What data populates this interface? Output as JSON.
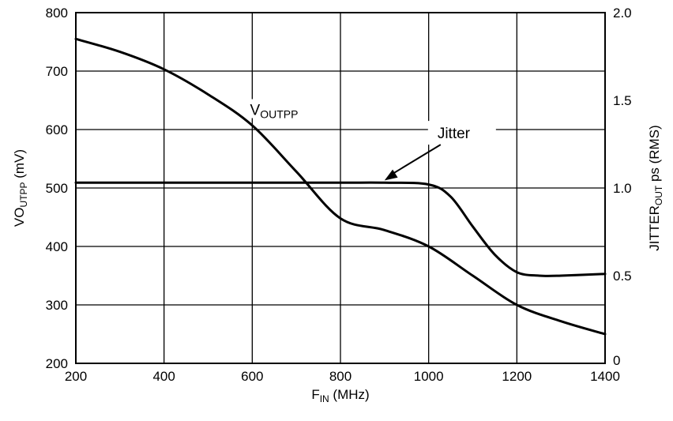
{
  "chart_data": {
    "type": "line",
    "x_axis": {
      "label_main": "F",
      "label_sub": "IN",
      "label_rest": " (MHz)",
      "range": [
        200,
        1400
      ],
      "ticks": [
        200,
        400,
        600,
        800,
        1000,
        1200,
        1400
      ],
      "tick_labels": [
        "200",
        "400",
        "600",
        "800",
        "1000",
        "1200",
        "1400"
      ]
    },
    "y_axis_left": {
      "label_main": "VO",
      "label_sub": "UTPP",
      "label_rest": " (mV)",
      "range": [
        200,
        800
      ],
      "ticks": [
        200,
        300,
        400,
        500,
        600,
        700,
        800
      ],
      "tick_labels": [
        "200",
        "300",
        "400",
        "500",
        "600",
        "700",
        "800"
      ]
    },
    "y_axis_right": {
      "label_main": "JITTER",
      "label_sub": "OUT",
      "label_rest": " ps (RMS)",
      "range": [
        0,
        2.0
      ],
      "ticks": [
        0,
        0.5,
        1.0,
        1.5,
        2.0
      ],
      "tick_labels": [
        "0",
        "0.5",
        "1.0",
        "1.5",
        "2.0"
      ]
    },
    "grid": true,
    "series": [
      {
        "key": "voutpp",
        "axis": "left",
        "x": [
          200,
          300,
          400,
          500,
          600,
          700,
          800,
          900,
          1000,
          1100,
          1200,
          1300,
          1400
        ],
        "y": [
          755,
          733,
          703,
          660,
          607,
          528,
          448,
          428,
          400,
          350,
          300,
          272,
          250
        ]
      },
      {
        "key": "jitter",
        "axis": "right",
        "x": [
          200,
          400,
          600,
          800,
          900,
          1000,
          1050,
          1100,
          1150,
          1200,
          1250,
          1300,
          1400
        ],
        "y": [
          1.03,
          1.03,
          1.03,
          1.03,
          1.03,
          1.02,
          0.95,
          0.78,
          0.62,
          0.52,
          0.5,
          0.5,
          0.51
        ]
      }
    ],
    "annotations": [
      {
        "key": "voutpp_label",
        "text_main": "V",
        "text_sub": "OUTPP",
        "x": 595,
        "y": 625
      },
      {
        "key": "jitter_label",
        "text": "Jitter",
        "x": 1020,
        "y": 585,
        "arrow_to": [
          900,
          1.03
        ]
      }
    ]
  }
}
